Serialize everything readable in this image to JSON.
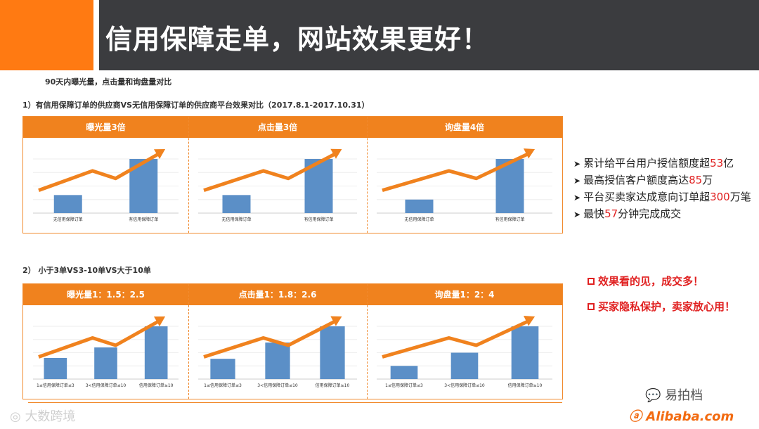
{
  "header": {
    "title": "信用保障走单，网站效果更好！"
  },
  "caption": "90天内曝光量，点击量和询盘量对比",
  "section1": {
    "label": "1）有信用保障订单的供应商VS无信用保障订单的供应商平台效果对比（2017.8.1-2017.10.31）",
    "headers": [
      "曝光量3倍",
      "点击量3倍",
      "询盘量4倍"
    ],
    "charts": [
      {
        "type": "bar",
        "categories": [
          "无信用保障订单",
          "有信用保障订单"
        ],
        "values": [
          1,
          3
        ]
      },
      {
        "type": "bar",
        "categories": [
          "无信用保障订单",
          "有信用保障订单"
        ],
        "values": [
          1,
          3
        ]
      },
      {
        "type": "bar",
        "categories": [
          "无信用保障订单",
          "有信用保障订单"
        ],
        "values": [
          1,
          4
        ]
      }
    ]
  },
  "section2": {
    "label": "2） 小于3单VS3-10单VS大于10单",
    "headers": [
      "曝光量1：1.5：2.5",
      "点击量1：1.8：2.6",
      "询盘量1：2：4"
    ],
    "charts": [
      {
        "type": "bar",
        "categories": [
          "1≤信用保障订单≤3",
          "3<信用保障订单≤10",
          "信用保障订单≥10"
        ],
        "values": [
          1,
          1.5,
          2.5
        ]
      },
      {
        "type": "bar",
        "categories": [
          "1≤信用保障订单≤3",
          "3<信用保障订单≤10",
          "信用保障订单≥10"
        ],
        "values": [
          1,
          1.8,
          2.6
        ]
      },
      {
        "type": "bar",
        "categories": [
          "1≤信用保障订单≤3",
          "3<信用保障订单≤10",
          "信用保障订单≥10"
        ],
        "values": [
          1,
          2,
          4
        ]
      }
    ]
  },
  "stats": [
    {
      "pre": "累计给平台用户授信额度超",
      "num": "53",
      "post": "亿"
    },
    {
      "pre": "最高授信客户额度高达",
      "num": "85",
      "post": "万"
    },
    {
      "pre": "平台买卖家达成意向订单超",
      "num": "300",
      "post": "万笔"
    },
    {
      "pre": "最快",
      "num": "57",
      "post": "分钟完成成交"
    }
  ],
  "slogans": [
    "效果看的见，成交多！",
    "买家隐私保护，卖家放心用！"
  ],
  "watermark_left": "大数跨境",
  "watermark_right": "易拍档",
  "logo_text": "Alibaba.com",
  "colors": {
    "accent": "#ff7a12",
    "bar": "#5b8fc7",
    "arrow": "#f0821e",
    "highlight": "#e02020"
  }
}
